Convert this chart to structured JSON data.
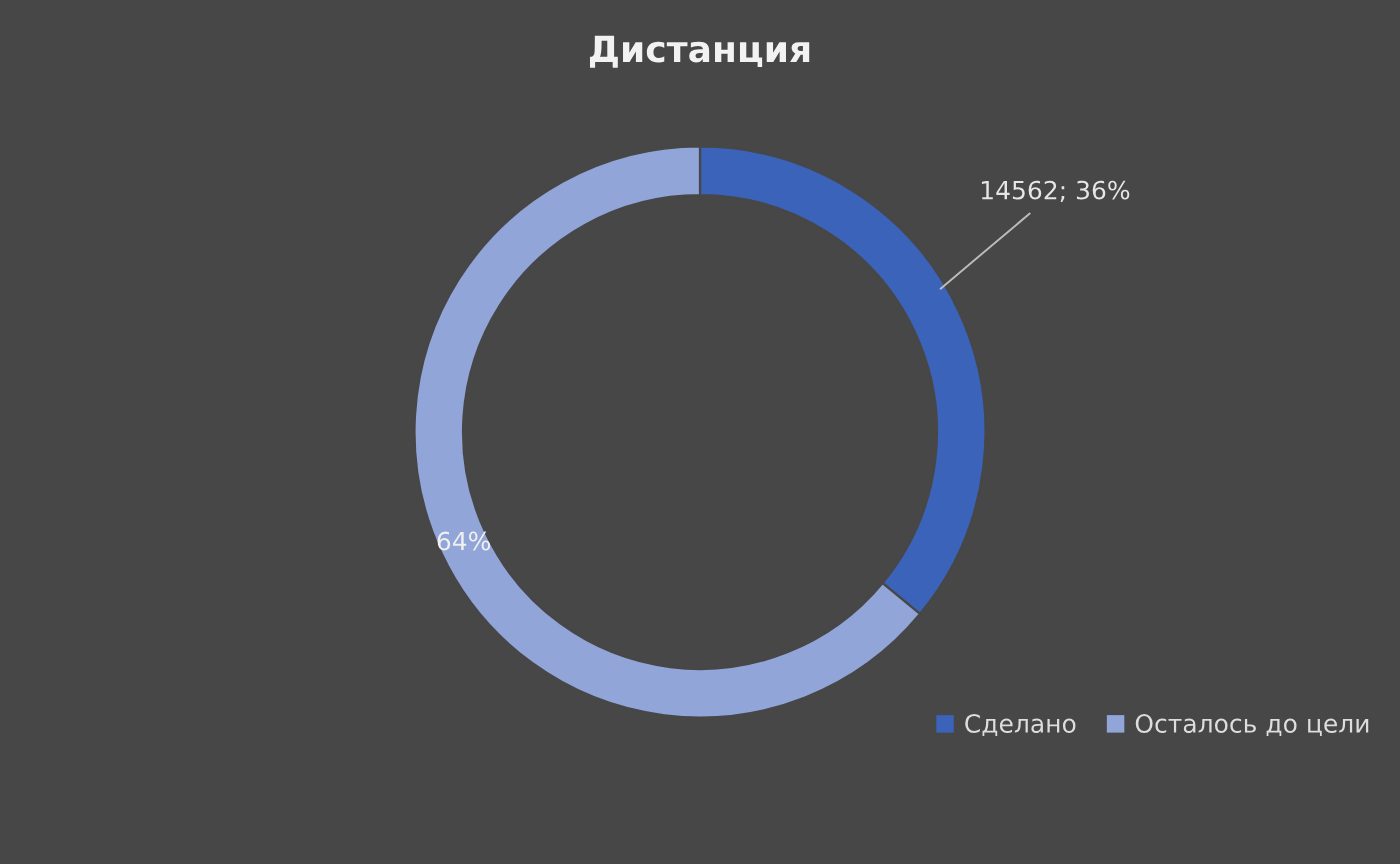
{
  "chart_data": {
    "type": "donut",
    "title": "Дистанция",
    "categories": [
      "Сделано",
      "Осталось до цели"
    ],
    "values": [
      36,
      64
    ],
    "colors": [
      "#3a63b9",
      "#91a5d9"
    ],
    "value_labels": [
      "14562; 36%",
      "64%"
    ],
    "legend": "bottom right"
  }
}
